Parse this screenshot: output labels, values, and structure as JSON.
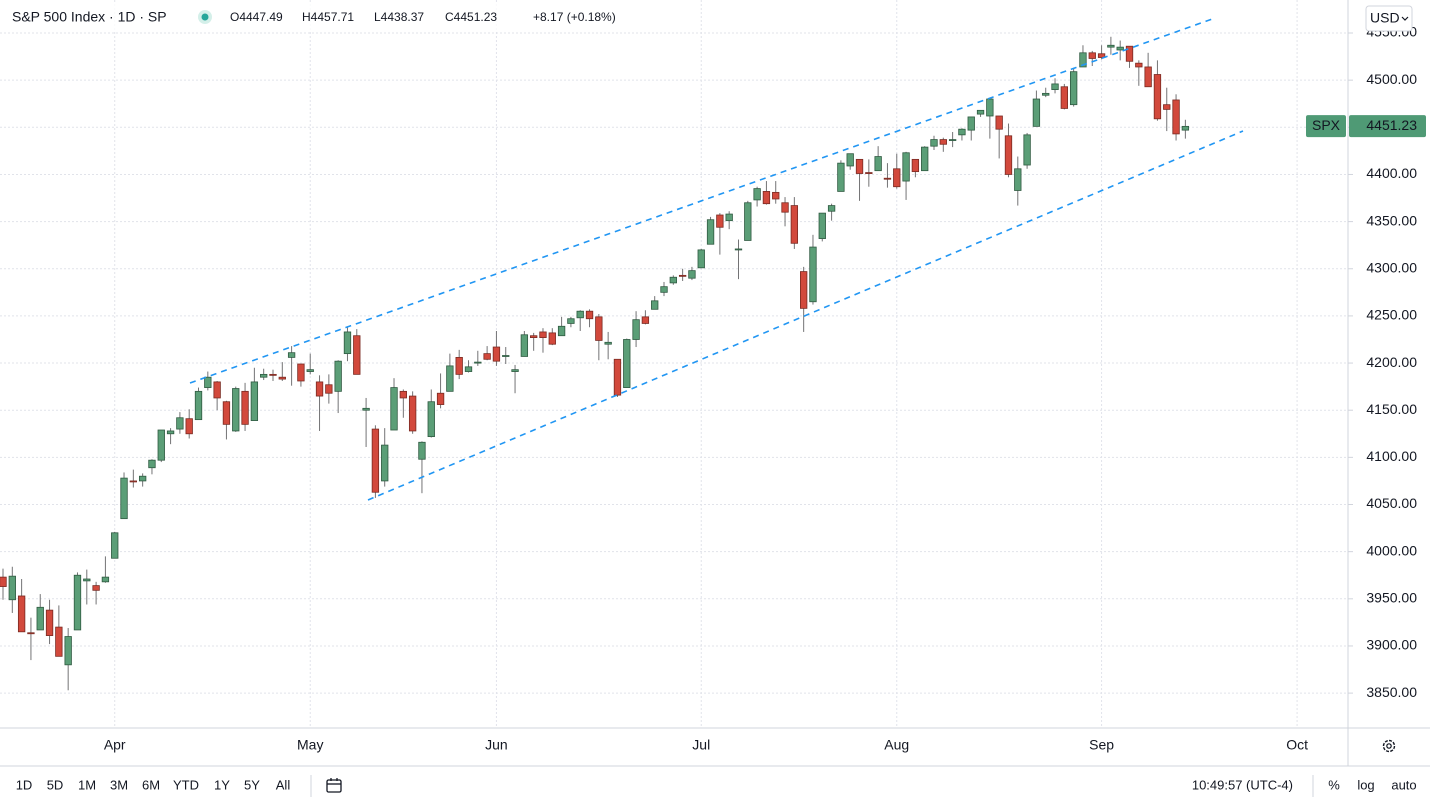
{
  "header": {
    "title": "S&P 500 Index · 1D · SP",
    "ohlc": [
      "O4447.49",
      "H4457.71",
      "L4438.37",
      "C4451.23",
      "+8.17 (+0.18%)"
    ],
    "currency": "USD"
  },
  "toolbar": {
    "ranges": [
      "1D",
      "5D",
      "1M",
      "3M",
      "6M",
      "YTD",
      "1Y",
      "5Y",
      "All"
    ],
    "time": "10:49:57 (UTC-4)",
    "options": [
      "%",
      "log",
      "auto"
    ]
  },
  "chart_data": {
    "type": "candlestick",
    "up_color": "#5b9e77",
    "down_color": "#d2493c",
    "up_border": "#2f5a41",
    "down_border": "#7a2a22",
    "wick_color": "#737375",
    "grid": true,
    "last_price": {
      "label": "SPX",
      "value": 4451.23,
      "color": "#4f9a75"
    },
    "categories": [
      null,
      null,
      null,
      null,
      null,
      null,
      null,
      null,
      null,
      null,
      null,
      null,
      "Apr",
      null,
      null,
      null,
      null,
      null,
      null,
      null,
      null,
      null,
      null,
      null,
      null,
      null,
      null,
      null,
      null,
      null,
      null,
      null,
      null,
      "May",
      null,
      null,
      null,
      null,
      null,
      null,
      null,
      null,
      null,
      null,
      null,
      null,
      null,
      null,
      null,
      null,
      null,
      null,
      null,
      "Jun",
      null,
      null,
      null,
      null,
      null,
      null,
      null,
      null,
      null,
      null,
      null,
      null,
      null,
      null,
      null,
      null,
      null,
      null,
      null,
      null,
      null,
      "Jul",
      null,
      null,
      null,
      null,
      null,
      null,
      null,
      null,
      null,
      null,
      null,
      null,
      null,
      null,
      null,
      null,
      null,
      null,
      null,
      null,
      "Aug",
      null,
      null,
      null,
      null,
      null,
      null,
      null,
      null,
      null,
      null,
      null,
      null,
      null,
      null,
      null,
      null,
      null,
      null,
      null,
      null,
      null,
      "Sep",
      null,
      null,
      null,
      null,
      null,
      null,
      null,
      null,
      null,
      null,
      null,
      null,
      null,
      null,
      null,
      null,
      null,
      null,
      null,
      null,
      "Oct",
      null,
      null,
      null,
      null,
      null
    ],
    "open": [
      3973,
      3949,
      3953,
      3914,
      3917,
      3938,
      3920,
      3880,
      3917,
      3969,
      3964,
      3968,
      3993,
      4035,
      4075,
      4075,
      4089,
      4097,
      4125,
      4130,
      4141,
      4140,
      4174,
      4180,
      4159,
      4128,
      4170,
      4139,
      4185,
      4188,
      4185,
      4206,
      4199,
      4191,
      4180,
      4177,
      4170,
      4210,
      4229,
      4150,
      4130,
      4075,
      4129,
      4170,
      4165,
      4098,
      4122,
      4168,
      4170,
      4206,
      4191,
      4201,
      4210,
      4217,
      4207,
      4191,
      4207,
      4229,
      4233,
      4232,
      4229,
      4242,
      4248,
      4255,
      4249,
      4220,
      4204,
      4174,
      4225,
      4249,
      4257,
      4275,
      4285,
      4293,
      4290,
      4301,
      4326,
      4357,
      4351,
      4321,
      4330,
      4373,
      4382,
      4381,
      4370,
      4367,
      4297,
      4265,
      4332,
      4361,
      4382,
      4409,
      4416,
      4402,
      4404,
      4396,
      4406,
      4393,
      4416,
      4404,
      4430,
      4437,
      4436,
      4442,
      4447,
      4464,
      4462,
      4462,
      4441,
      4383,
      4410,
      4451,
      4484,
      4490,
      4493,
      4474,
      4514,
      4529,
      4528,
      4535,
      4532,
      4536,
      4518,
      4514,
      4506,
      4474,
      4479,
      4447,
      null,
      null,
      null,
      null,
      null,
      null,
      null,
      null,
      null,
      null,
      null,
      null,
      null,
      null,
      null,
      null,
      null
    ],
    "high": [
      3982,
      3984,
      3971,
      3930,
      3955,
      3949,
      3943,
      3919,
      3978,
      3981,
      3968,
      3995,
      4021,
      4084,
      4087,
      4083,
      4098,
      4129,
      4131,
      4148,
      4151,
      4174,
      4191,
      4181,
      4160,
      4175,
      4179,
      4195,
      4194,
      4193,
      4201,
      4218,
      4199,
      4210,
      4187,
      4188,
      4203,
      4238,
      4236,
      4163,
      4134,
      4131,
      4184,
      4172,
      4170,
      4117,
      4172,
      4189,
      4210,
      4214,
      4203,
      4213,
      4218,
      4234,
      4217,
      4198,
      4234,
      4232,
      4237,
      4237,
      4249,
      4249,
      4256,
      4257,
      4252,
      4233,
      4204,
      4226,
      4255,
      4256,
      4271,
      4286,
      4293,
      4300,
      4302,
      4321,
      4355,
      4359,
      4361,
      4331,
      4372,
      4387,
      4393,
      4393,
      4376,
      4376,
      4302,
      4336,
      4359,
      4369,
      4415,
      4422,
      4416,
      4416,
      4430,
      4412,
      4422,
      4424,
      4416,
      4430,
      4441,
      4439,
      4445,
      4449,
      4461,
      4468,
      4480,
      4462,
      4454,
      4419,
      4444,
      4489,
      4492,
      4502,
      4496,
      4513,
      4537,
      4531,
      4537,
      4546,
      4542,
      4536,
      4521,
      4529,
      4521,
      4492,
      4485,
      4458,
      null,
      null,
      null,
      null,
      null,
      null,
      null,
      null,
      null,
      null,
      null,
      null,
      null,
      null,
      null,
      null,
      null
    ],
    "low": [
      3949,
      3935,
      3915,
      3885,
      3917,
      3902,
      3889,
      3853,
      3917,
      3944,
      3944,
      3967,
      3993,
      4035,
      4068,
      4069,
      4082,
      4095,
      4114,
      4125,
      4120,
      4140,
      4171,
      4150,
      4119,
      4127,
      4128,
      4139,
      4182,
      4181,
      4181,
      4176,
      4175,
      4188,
      4128,
      4157,
      4147,
      4202,
      4188,
      4111,
      4057,
      4069,
      4129,
      4142,
      4125,
      4062,
      4121,
      4152,
      4170,
      4183,
      4190,
      4197,
      4203,
      4197,
      4199,
      4168,
      4207,
      4213,
      4211,
      4219,
      4229,
      4238,
      4234,
      4238,
      4203,
      4204,
      4164,
      4174,
      4217,
      4241,
      4257,
      4271,
      4283,
      4287,
      4288,
      4301,
      4326,
      4315,
      4342,
      4289,
      4330,
      4366,
      4368,
      4369,
      4345,
      4321,
      4233,
      4262,
      4329,
      4351,
      4382,
      4405,
      4372,
      4387,
      4404,
      4386,
      4385,
      4373,
      4397,
      4404,
      4426,
      4424,
      4429,
      4436,
      4436,
      4461,
      4438,
      4417,
      4397,
      4367,
      4406,
      4451,
      4482,
      4486,
      4469,
      4472,
      4514,
      4515,
      4522,
      4527,
      4521,
      4513,
      4494,
      4493,
      4457,
      4446,
      4436,
      4438,
      null,
      null,
      null,
      null,
      null,
      null,
      null,
      null,
      null,
      null,
      null,
      null,
      null,
      null,
      null,
      null,
      null
    ],
    "close": [
      3963,
      3974,
      3915,
      3913,
      3941,
      3911,
      3889,
      3910,
      3975,
      3971,
      3959,
      3973,
      4020,
      4078,
      4074,
      4080,
      4097,
      4129,
      4128,
      4142,
      4125,
      4170,
      4185,
      4163,
      4135,
      4173,
      4135,
      4180,
      4188,
      4187,
      4183,
      4211,
      4181,
      4193,
      4165,
      4168,
      4202,
      4233,
      4188,
      4152,
      4063,
      4113,
      4174,
      4163,
      4128,
      4116,
      4159,
      4156,
      4197,
      4188,
      4196,
      4201,
      4204,
      4202,
      4208,
      4193,
      4230,
      4227,
      4227,
      4220,
      4239,
      4247,
      4255,
      4247,
      4224,
      4222,
      4166,
      4225,
      4246,
      4242,
      4266,
      4281,
      4291,
      4292,
      4298,
      4320,
      4352,
      4344,
      4358,
      4321,
      4370,
      4385,
      4369,
      4374,
      4360,
      4327,
      4258,
      4323,
      4359,
      4367,
      4412,
      4422,
      4401,
      4401,
      4419,
      4395,
      4387,
      4423,
      4403,
      4429,
      4437,
      4432,
      4437,
      4448,
      4461,
      4468,
      4480,
      4448,
      4400,
      4406,
      4442,
      4480,
      4486,
      4496,
      4470,
      4509,
      4529,
      4523,
      4524,
      4537,
      4535,
      4520,
      4514,
      4493,
      4459,
      4469,
      4443,
      4451,
      null,
      null,
      null,
      null,
      null,
      null,
      null,
      null,
      null,
      null,
      null,
      null,
      null,
      null,
      null,
      null,
      null
    ],
    "ylim": [
      3813,
      4585
    ],
    "yticks": [
      {
        "value": 3850,
        "label": "3850.00"
      },
      {
        "value": 3900,
        "label": "3900.00"
      },
      {
        "value": 3950,
        "label": "3950.00"
      },
      {
        "value": 4000,
        "label": "4000.00"
      },
      {
        "value": 4050,
        "label": "4050.00"
      },
      {
        "value": 4100,
        "label": "4100.00"
      },
      {
        "value": 4150,
        "label": "4150.00"
      },
      {
        "value": 4200,
        "label": "4200.00"
      },
      {
        "value": 4250,
        "label": "4250.00"
      },
      {
        "value": 4300,
        "label": "4300.00"
      },
      {
        "value": 4350,
        "label": "4350.00"
      },
      {
        "value": 4400,
        "label": "4400.00"
      },
      {
        "value": 4450,
        "label": "4450.00"
      },
      {
        "value": 4500,
        "label": "4500.00"
      },
      {
        "value": 4550,
        "label": "4550.00"
      }
    ]
  }
}
